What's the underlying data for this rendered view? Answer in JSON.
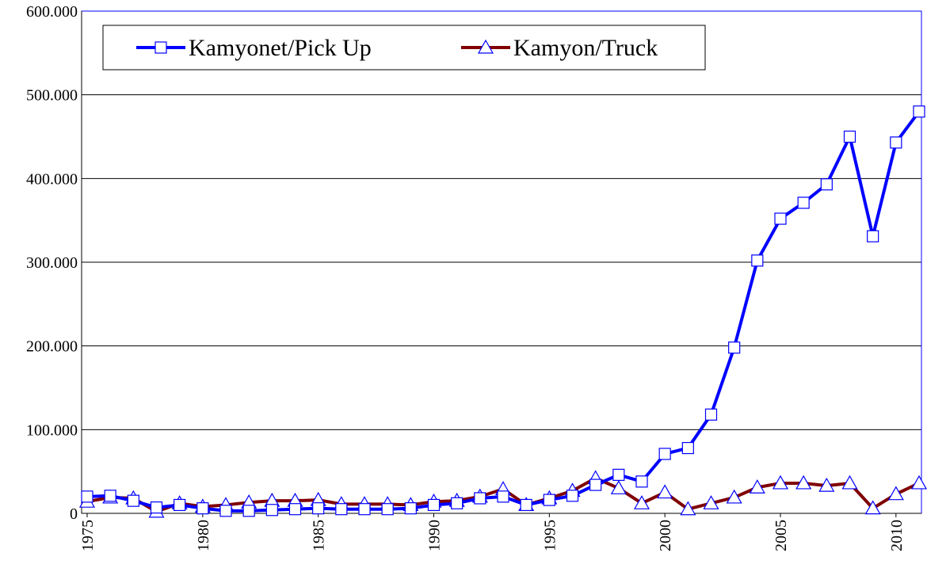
{
  "chart_data": {
    "type": "line",
    "x": [
      1975,
      1976,
      1977,
      1978,
      1979,
      1980,
      1981,
      1982,
      1983,
      1984,
      1985,
      1986,
      1987,
      1988,
      1989,
      1990,
      1991,
      1992,
      1993,
      1994,
      1995,
      1996,
      1997,
      1998,
      1999,
      2000,
      2001,
      2002,
      2003,
      2004,
      2005,
      2006,
      2007,
      2008,
      2009,
      2010,
      2011
    ],
    "series": [
      {
        "name": "Kamyonet/Pick Up",
        "color": "#0000ff",
        "marker": "square",
        "values": [
          20000,
          21000,
          15000,
          7000,
          10000,
          6000,
          3000,
          3000,
          4000,
          5000,
          6000,
          5000,
          5000,
          5000,
          6000,
          10000,
          12000,
          18000,
          20000,
          10000,
          16000,
          21000,
          34000,
          46000,
          38000,
          71000,
          78000,
          118000,
          198000,
          302000,
          352000,
          371000,
          393000,
          450000,
          331000,
          443000,
          480000
        ]
      },
      {
        "name": "Kamyon/Truck",
        "color": "#800000",
        "marker": "triangle",
        "values": [
          14000,
          19000,
          18000,
          2000,
          12000,
          8000,
          10000,
          13000,
          15000,
          15000,
          16000,
          11000,
          11000,
          11000,
          10000,
          14000,
          15000,
          20000,
          29000,
          10000,
          18000,
          27000,
          42000,
          30000,
          12000,
          25000,
          5000,
          12000,
          19000,
          31000,
          36000,
          36000,
          33000,
          36000,
          6000,
          23000,
          36000
        ]
      }
    ],
    "xlim": [
      1975,
      2011
    ],
    "xticks": [
      1975,
      1980,
      1985,
      1990,
      1995,
      2000,
      2005,
      2010
    ],
    "ylim": [
      0,
      600000
    ],
    "yticks": [
      0,
      {
        "value": 100000,
        "label": "100.000"
      },
      {
        "value": 200000,
        "label": "200.000"
      },
      {
        "value": 300000,
        "label": "300.000"
      },
      {
        "value": 400000,
        "label": "400.000"
      },
      {
        "value": 500000,
        "label": "500.000"
      },
      {
        "value": 600000,
        "label": "600.000"
      }
    ],
    "grid": true,
    "legend": "top-left"
  }
}
